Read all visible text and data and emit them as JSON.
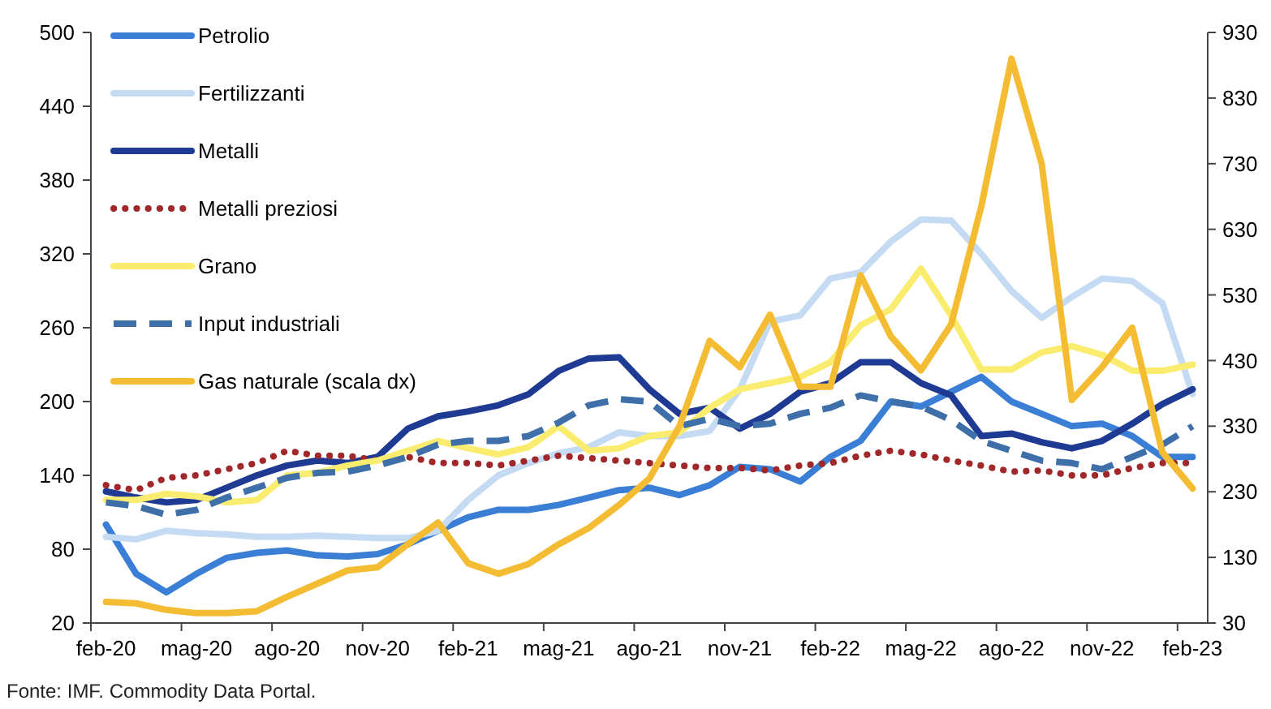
{
  "chart_data": {
    "type": "line",
    "categories": [
      "feb-20",
      null,
      null,
      "mag-20",
      null,
      null,
      "ago-20",
      null,
      null,
      "nov-20",
      null,
      null,
      "feb-21",
      null,
      null,
      "mag-21",
      null,
      null,
      "ago-21",
      null,
      null,
      "nov-21",
      null,
      null,
      "feb-22",
      null,
      null,
      "mag-22",
      null,
      null,
      "ago-22",
      null,
      null,
      "nov-22",
      null,
      null,
      "feb-23"
    ],
    "series": [
      {
        "name": "Petrolio",
        "color": "#3a7fd5",
        "values": [
          100,
          60,
          45,
          60,
          73,
          77,
          79,
          75,
          74,
          76,
          84,
          95,
          106,
          112,
          112,
          116,
          122,
          128,
          130,
          124,
          132,
          147,
          145,
          135,
          155,
          168,
          200,
          196,
          208,
          220,
          200,
          190,
          180,
          182,
          172,
          155,
          155
        ]
      },
      {
        "name": "Fertilizzanti",
        "color": "#c5dbf4",
        "values": [
          90,
          88,
          95,
          93,
          92,
          90,
          90,
          91,
          90,
          89,
          89,
          95,
          120,
          140,
          150,
          158,
          163,
          175,
          172,
          172,
          176,
          210,
          265,
          270,
          300,
          305,
          330,
          348,
          347,
          320,
          290,
          268,
          285,
          300,
          298,
          280,
          206
        ]
      },
      {
        "name": "Metalli",
        "color": "#1f3a93",
        "values": [
          127,
          122,
          118,
          120,
          130,
          140,
          148,
          152,
          150,
          155,
          178,
          188,
          192,
          197,
          206,
          225,
          235,
          236,
          210,
          190,
          195,
          178,
          190,
          208,
          215,
          232,
          232,
          215,
          205,
          172,
          174,
          167,
          162,
          168,
          182,
          198,
          210
        ]
      },
      {
        "name": "Metalli preziosi",
        "color": "#a0282a",
        "line_style": "dotted",
        "values": [
          132,
          128,
          138,
          140,
          145,
          150,
          160,
          156,
          156,
          152,
          155,
          150,
          150,
          148,
          152,
          156,
          154,
          152,
          150,
          148,
          146,
          146,
          144,
          148,
          150,
          156,
          160,
          157,
          152,
          148,
          143,
          144,
          140,
          140,
          146,
          150,
          150
        ]
      },
      {
        "name": "Grano",
        "color": "#f9ec6e",
        "values": [
          120,
          120,
          125,
          123,
          118,
          120,
          140,
          142,
          148,
          152,
          160,
          168,
          162,
          157,
          163,
          180,
          160,
          162,
          172,
          175,
          195,
          210,
          215,
          220,
          232,
          262,
          275,
          308,
          270,
          226,
          226,
          240,
          245,
          238,
          225,
          225,
          230
        ]
      },
      {
        "name": "Input industriali",
        "color": "#3f6fa8",
        "line_style": "dashed",
        "values": [
          118,
          115,
          108,
          112,
          122,
          130,
          138,
          142,
          143,
          148,
          155,
          165,
          168,
          168,
          172,
          183,
          197,
          202,
          200,
          180,
          186,
          180,
          182,
          190,
          195,
          205,
          200,
          196,
          185,
          168,
          160,
          152,
          150,
          145,
          155,
          165,
          180
        ]
      },
      {
        "name": "Gas naturale (scala dx)",
        "color": "#f4bc33",
        "axis": "y2",
        "values": [
          62,
          60,
          50,
          45,
          45,
          48,
          70,
          90,
          110,
          115,
          150,
          183,
          121,
          105,
          120,
          150,
          175,
          210,
          250,
          330,
          460,
          420,
          500,
          390,
          390,
          560,
          467,
          415,
          485,
          665,
          890,
          730,
          370,
          420,
          480,
          290,
          235
        ]
      }
    ],
    "ylim": [
      20,
      500
    ],
    "yticks": [
      20,
      80,
      140,
      200,
      260,
      320,
      380,
      440,
      500
    ],
    "y2lim": [
      30,
      930
    ],
    "y2ticks": [
      30,
      130,
      230,
      330,
      430,
      530,
      630,
      730,
      830,
      930
    ],
    "legend": "top left",
    "grid": false,
    "annotations": [
      "Fonte: IMF. Commodity Data Portal."
    ]
  }
}
